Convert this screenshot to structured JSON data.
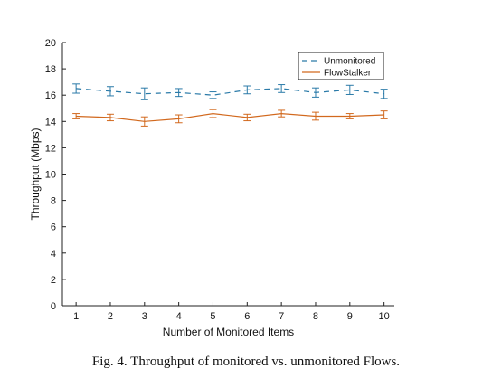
{
  "caption": "Fig. 4.  Throughput of monitored vs. unmonitored Flows.",
  "chart_data": {
    "type": "line",
    "title": "",
    "xlabel": "Number of Monitored Items",
    "ylabel": "Throughput (Mbps)",
    "x": [
      1,
      2,
      3,
      4,
      5,
      6,
      7,
      8,
      9,
      10
    ],
    "xlim": [
      0.6,
      10.3
    ],
    "ylim": [
      0,
      20
    ],
    "xticks": [
      "1",
      "2",
      "3",
      "4",
      "5",
      "6",
      "7",
      "8",
      "9",
      "10"
    ],
    "yticks": [
      "0",
      "2",
      "4",
      "6",
      "8",
      "10",
      "12",
      "14",
      "16",
      "18",
      "20"
    ],
    "grid": false,
    "legend_position": "top-right",
    "series": [
      {
        "name": "Unmonitored",
        "color": "#2a7aa8",
        "line_style": "dashed",
        "values": [
          16.5,
          16.3,
          16.1,
          16.2,
          16.0,
          16.4,
          16.5,
          16.2,
          16.4,
          16.1
        ],
        "errors": [
          0.35,
          0.35,
          0.45,
          0.3,
          0.25,
          0.3,
          0.3,
          0.35,
          0.35,
          0.35
        ]
      },
      {
        "name": "FlowStalker",
        "color": "#d2691e",
        "line_style": "solid",
        "values": [
          14.4,
          14.3,
          14.0,
          14.2,
          14.6,
          14.3,
          14.6,
          14.4,
          14.4,
          14.5
        ],
        "errors": [
          0.2,
          0.25,
          0.35,
          0.3,
          0.3,
          0.25,
          0.25,
          0.3,
          0.2,
          0.3
        ]
      }
    ]
  }
}
